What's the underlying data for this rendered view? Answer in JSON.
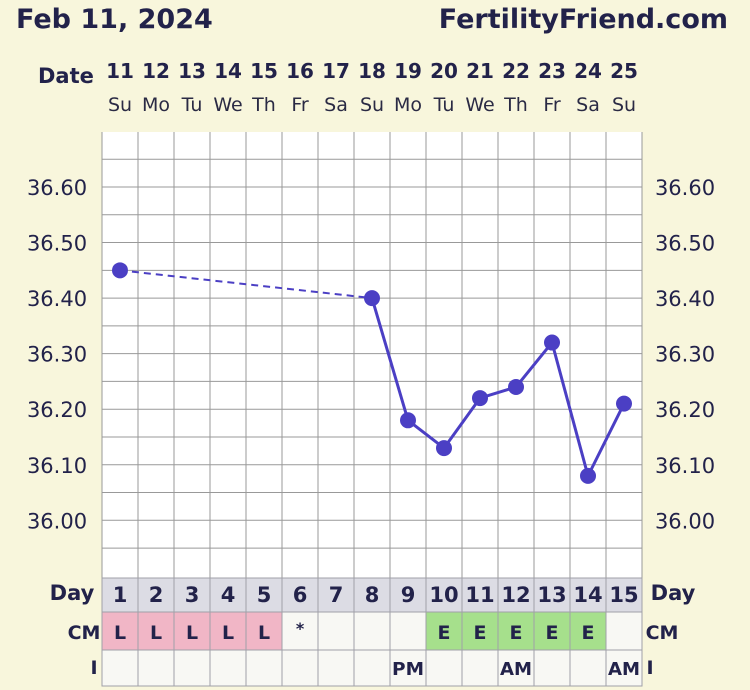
{
  "header": {
    "date": "Feb 11, 2024",
    "site": "FertilityFriend.com",
    "date_label": "Date"
  },
  "chart_data": {
    "type": "line",
    "x_dates": [
      "11",
      "12",
      "13",
      "14",
      "15",
      "16",
      "17",
      "18",
      "19",
      "20",
      "21",
      "22",
      "23",
      "24",
      "25"
    ],
    "x_weekdays": [
      "Su",
      "Mo",
      "Tu",
      "We",
      "Th",
      "Fr",
      "Sa",
      "Su",
      "Mo",
      "Tu",
      "We",
      "Th",
      "Fr",
      "Sa",
      "Su"
    ],
    "y_ticks": [
      "36.60",
      "36.50",
      "36.40",
      "36.30",
      "36.20",
      "36.10",
      "36.00"
    ],
    "ylim": [
      35.94,
      36.7
    ],
    "temperatures": [
      36.45,
      null,
      null,
      null,
      null,
      null,
      null,
      36.4,
      36.18,
      36.13,
      36.22,
      36.24,
      36.32,
      36.08,
      36.21
    ],
    "dashed_gap": [
      0,
      7
    ],
    "rows": {
      "day_label": "Day",
      "cm_label": "CM",
      "i_label": "I",
      "days": [
        "1",
        "2",
        "3",
        "4",
        "5",
        "6",
        "7",
        "8",
        "9",
        "10",
        "11",
        "12",
        "13",
        "14",
        "15"
      ],
      "cm": [
        "L",
        "L",
        "L",
        "L",
        "L",
        "*",
        "",
        "",
        "",
        "E",
        "E",
        "E",
        "E",
        "E",
        ""
      ],
      "intercourse": [
        "",
        "",
        "",
        "",
        "",
        "",
        "",
        "",
        "PM",
        "",
        "",
        "AM",
        "",
        "",
        "AM"
      ]
    },
    "colors": {
      "line": "#4b3fc4",
      "cm_L_bg": "#f1b6c6",
      "cm_E_bg": "#a6e08c",
      "grid": "#999999"
    }
  }
}
